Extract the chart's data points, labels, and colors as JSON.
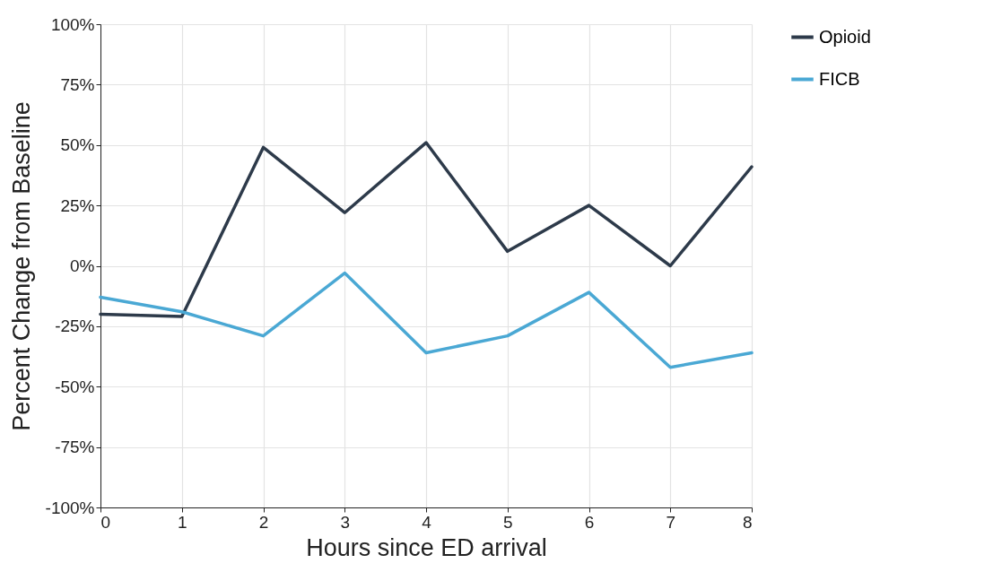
{
  "chart_data": {
    "type": "line",
    "xlabel": "Hours since ED arrival",
    "ylabel": "Percent Change from Baseline",
    "x": [
      0,
      1,
      2,
      3,
      4,
      5,
      6,
      7,
      8
    ],
    "series": [
      {
        "name": "Opioid",
        "color": "#2d3a4a",
        "values": [
          -20,
          -21,
          49,
          22,
          51,
          6,
          25,
          0,
          41
        ]
      },
      {
        "name": "FICB",
        "color": "#4aa8d4",
        "values": [
          -13,
          -19,
          -29,
          -3,
          -36,
          -29,
          -11,
          -42,
          -36
        ]
      }
    ],
    "xlim": [
      0,
      8
    ],
    "xticks": [
      0,
      1,
      2,
      3,
      4,
      5,
      6,
      7,
      8
    ],
    "ylim": [
      -100,
      100
    ],
    "yticks": [
      {
        "value": -100,
        "label": "-100%"
      },
      {
        "value": -75,
        "label": "-75%"
      },
      {
        "value": -50,
        "label": "-50%"
      },
      {
        "value": -25,
        "label": "-25%"
      },
      {
        "value": 0,
        "label": "0%"
      },
      {
        "value": 25,
        "label": "25%"
      },
      {
        "value": 50,
        "label": "50%"
      },
      {
        "value": 75,
        "label": "75%"
      },
      {
        "value": 100,
        "label": "100%"
      }
    ],
    "grid": true,
    "legend": "right",
    "line_style": "solid",
    "marker": "none"
  }
}
